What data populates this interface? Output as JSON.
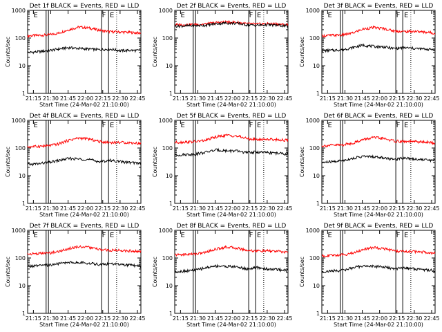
{
  "figure": {
    "background": "#ffffff",
    "foreground": "#000000"
  },
  "chart_data": [
    {
      "type": "line",
      "title": "Det 1f BLACK = Events, RED = LLD",
      "xlabel": "Start Time (24-Mar-02 21:10:00)",
      "ylabel": "Counts/sec",
      "yscale": "log",
      "ylim": [
        1,
        1000
      ],
      "xlim": [
        "21:10",
        "22:48"
      ],
      "x_ticks": [
        "21:15",
        "21:30",
        "21:45",
        "22:00",
        "22:15",
        "22:30",
        "22:45"
      ],
      "y_ticks": [
        "1",
        "10",
        "100",
        "1000"
      ],
      "markers": [
        {
          "label": "E",
          "time": "21:17"
        },
        {
          "label": "F",
          "time": "22:16"
        },
        {
          "label": "E",
          "time": "22:23"
        }
      ],
      "solid_lines": [
        "21:26",
        "21:28",
        "22:14",
        "22:20"
      ],
      "dotted_lines": [
        "22:27"
      ],
      "series": [
        {
          "color": "#ff0000",
          "values": [
            120,
            125,
            130,
            150,
            200,
            250,
            230,
            190,
            170,
            165,
            160,
            150
          ]
        },
        {
          "color": "#000000",
          "values": [
            30,
            32,
            35,
            40,
            45,
            42,
            40,
            38,
            40,
            35,
            36,
            35
          ]
        }
      ]
    },
    {
      "type": "line",
      "title": "Det 2f BLACK = Events, RED = LLD",
      "xlabel": "Start Time (24-Mar-02 21:10:00)",
      "ylabel": "Counts/sec",
      "yscale": "log",
      "ylim": [
        1,
        1000
      ],
      "xlim": [
        "21:10",
        "22:48"
      ],
      "x_ticks": [
        "21:15",
        "21:30",
        "21:45",
        "22:00",
        "22:15",
        "22:30",
        "22:45"
      ],
      "y_ticks": [
        "1",
        "10",
        "100",
        "1000"
      ],
      "markers": [
        {
          "label": "E",
          "time": "21:17"
        },
        {
          "label": "F",
          "time": "22:16"
        },
        {
          "label": "E",
          "time": "22:23"
        }
      ],
      "solid_lines": [
        "21:26",
        "21:28",
        "22:14",
        "22:20"
      ],
      "dotted_lines": [
        "22:27"
      ],
      "series": [
        {
          "color": "#ff0000",
          "values": [
            300,
            305,
            310,
            320,
            360,
            380,
            370,
            330,
            320,
            330,
            320,
            300
          ]
        },
        {
          "color": "#000000",
          "values": [
            270,
            275,
            280,
            290,
            330,
            350,
            340,
            300,
            290,
            300,
            290,
            270
          ]
        }
      ]
    },
    {
      "type": "line",
      "title": "Det 3f BLACK = Events, RED = LLD",
      "xlabel": "Start Time (24-Mar-02 21:10:00)",
      "ylabel": "Counts/sec",
      "yscale": "log",
      "ylim": [
        1,
        1000
      ],
      "xlim": [
        "21:10",
        "22:48"
      ],
      "x_ticks": [
        "21:15",
        "21:30",
        "21:45",
        "22:00",
        "22:15",
        "22:30",
        "22:45"
      ],
      "y_ticks": [
        "1",
        "10",
        "100",
        "1000"
      ],
      "markers": [
        {
          "label": "E",
          "time": "21:17"
        },
        {
          "label": "F",
          "time": "22:16"
        },
        {
          "label": "E",
          "time": "22:23"
        }
      ],
      "solid_lines": [
        "21:26",
        "21:28",
        "22:14",
        "22:20"
      ],
      "dotted_lines": [
        "22:27"
      ],
      "series": [
        {
          "color": "#ff0000",
          "values": [
            120,
            125,
            130,
            150,
            210,
            240,
            220,
            180,
            170,
            175,
            165,
            150
          ]
        },
        {
          "color": "#000000",
          "values": [
            35,
            36,
            38,
            45,
            55,
            50,
            48,
            42,
            45,
            42,
            40,
            38
          ]
        }
      ]
    },
    {
      "type": "line",
      "title": "Det 4f BLACK = Events, RED = LLD",
      "xlabel": "Start Time (24-Mar-02 21:10:00)",
      "ylabel": "Counts/sec",
      "yscale": "log",
      "ylim": [
        1,
        1000
      ],
      "xlim": [
        "21:10",
        "22:48"
      ],
      "x_ticks": [
        "21:15",
        "21:30",
        "21:45",
        "22:00",
        "22:15",
        "22:30",
        "22:45"
      ],
      "y_ticks": [
        "1",
        "10",
        "100",
        "1000"
      ],
      "markers": [
        {
          "label": "E",
          "time": "21:17"
        },
        {
          "label": "F",
          "time": "22:16"
        },
        {
          "label": "E",
          "time": "22:23"
        }
      ],
      "solid_lines": [
        "21:26",
        "21:28",
        "22:14",
        "22:20"
      ],
      "dotted_lines": [
        "22:27"
      ],
      "series": [
        {
          "color": "#ff0000",
          "values": [
            110,
            115,
            120,
            140,
            190,
            230,
            210,
            170,
            160,
            160,
            155,
            145
          ]
        },
        {
          "color": "#000000",
          "values": [
            25,
            27,
            30,
            35,
            42,
            40,
            38,
            32,
            36,
            32,
            30,
            28
          ]
        }
      ]
    },
    {
      "type": "line",
      "title": "Det 5f BLACK = Events, RED = LLD",
      "xlabel": "Start Time (24-Mar-02 21:10:00)",
      "ylabel": "Counts/sec",
      "yscale": "log",
      "ylim": [
        1,
        1000
      ],
      "xlim": [
        "21:10",
        "22:48"
      ],
      "x_ticks": [
        "21:15",
        "21:30",
        "21:45",
        "22:00",
        "22:15",
        "22:30",
        "22:45"
      ],
      "y_ticks": [
        "1",
        "10",
        "100",
        "1000"
      ],
      "markers": [
        {
          "label": "E",
          "time": "21:17"
        },
        {
          "label": "F",
          "time": "22:16"
        },
        {
          "label": "E",
          "time": "22:23"
        }
      ],
      "solid_lines": [
        "21:26",
        "21:28",
        "22:14",
        "22:20"
      ],
      "dotted_lines": [
        "22:27"
      ],
      "series": [
        {
          "color": "#ff0000",
          "values": [
            160,
            165,
            170,
            190,
            250,
            290,
            270,
            220,
            200,
            210,
            200,
            190
          ]
        },
        {
          "color": "#000000",
          "values": [
            55,
            58,
            60,
            70,
            85,
            80,
            78,
            68,
            72,
            68,
            65,
            60
          ]
        }
      ]
    },
    {
      "type": "line",
      "title": "Det 6f BLACK = Events, RED = LLD",
      "xlabel": "Start Time (24-Mar-02 21:10:00)",
      "ylabel": "Counts/sec",
      "yscale": "log",
      "ylim": [
        1,
        1000
      ],
      "xlim": [
        "21:10",
        "22:48"
      ],
      "x_ticks": [
        "21:15",
        "21:30",
        "21:45",
        "22:00",
        "22:15",
        "22:30",
        "22:45"
      ],
      "y_ticks": [
        "1",
        "10",
        "100",
        "1000"
      ],
      "markers": [
        {
          "label": "E",
          "time": "21:17"
        },
        {
          "label": "F",
          "time": "22:16"
        },
        {
          "label": "E",
          "time": "22:23"
        }
      ],
      "solid_lines": [
        "21:26",
        "21:28",
        "22:14",
        "22:20"
      ],
      "dotted_lines": [
        "22:27"
      ],
      "series": [
        {
          "color": "#ff0000",
          "values": [
            120,
            125,
            130,
            150,
            200,
            240,
            220,
            180,
            170,
            170,
            165,
            150
          ]
        },
        {
          "color": "#000000",
          "values": [
            30,
            32,
            35,
            42,
            50,
            48,
            45,
            38,
            45,
            40,
            38,
            35
          ]
        }
      ]
    },
    {
      "type": "line",
      "title": "Det 7f BLACK = Events, RED = LLD",
      "xlabel": "Start Time (24-Mar-02 21:10:00)",
      "ylabel": "Counts/sec",
      "yscale": "log",
      "ylim": [
        1,
        1000
      ],
      "xlim": [
        "21:10",
        "22:48"
      ],
      "x_ticks": [
        "21:15",
        "21:30",
        "21:45",
        "22:00",
        "22:15",
        "22:30",
        "22:45"
      ],
      "y_ticks": [
        "1",
        "10",
        "100",
        "1000"
      ],
      "markers": [
        {
          "label": "E",
          "time": "21:17"
        },
        {
          "label": "F",
          "time": "22:16"
        },
        {
          "label": "E",
          "time": "22:23"
        }
      ],
      "solid_lines": [
        "21:26",
        "21:28",
        "22:14",
        "22:20"
      ],
      "dotted_lines": [
        "22:27"
      ],
      "series": [
        {
          "color": "#ff0000",
          "values": [
            140,
            145,
            150,
            170,
            220,
            260,
            240,
            200,
            190,
            190,
            180,
            170
          ]
        },
        {
          "color": "#000000",
          "values": [
            50,
            52,
            55,
            62,
            70,
            68,
            65,
            58,
            62,
            58,
            55,
            52
          ]
        }
      ]
    },
    {
      "type": "line",
      "title": "Det 8f BLACK = Events, RED = LLD",
      "xlabel": "Start Time (24-Mar-02 21:10:00)",
      "ylabel": "Counts/sec",
      "yscale": "log",
      "ylim": [
        1,
        1000
      ],
      "xlim": [
        "21:10",
        "22:48"
      ],
      "x_ticks": [
        "21:15",
        "21:30",
        "21:45",
        "22:00",
        "22:15",
        "22:30",
        "22:45"
      ],
      "y_ticks": [
        "1",
        "10",
        "100",
        "1000"
      ],
      "markers": [
        {
          "label": "E",
          "time": "21:17"
        },
        {
          "label": "F",
          "time": "22:16"
        },
        {
          "label": "E",
          "time": "22:23"
        }
      ],
      "solid_lines": [
        "21:26",
        "21:28",
        "22:14",
        "22:20"
      ],
      "dotted_lines": [
        "22:27"
      ],
      "series": [
        {
          "color": "#ff0000",
          "values": [
            130,
            135,
            140,
            160,
            210,
            250,
            230,
            190,
            180,
            180,
            175,
            160
          ]
        },
        {
          "color": "#000000",
          "values": [
            32,
            34,
            36,
            44,
            52,
            50,
            48,
            40,
            45,
            40,
            38,
            36
          ]
        }
      ]
    },
    {
      "type": "line",
      "title": "Det 9f BLACK = Events, RED = LLD",
      "xlabel": "Start Time (24-Mar-02 21:10:00)",
      "ylabel": "Counts/sec",
      "yscale": "log",
      "ylim": [
        1,
        1000
      ],
      "xlim": [
        "21:10",
        "22:48"
      ],
      "x_ticks": [
        "21:15",
        "21:30",
        "21:45",
        "22:00",
        "22:15",
        "22:30",
        "22:45"
      ],
      "y_ticks": [
        "1",
        "10",
        "100",
        "1000"
      ],
      "markers": [
        {
          "label": "E",
          "time": "21:17"
        },
        {
          "label": "F",
          "time": "22:16"
        },
        {
          "label": "E",
          "time": "22:23"
        }
      ],
      "solid_lines": [
        "21:26",
        "21:28",
        "22:14",
        "22:20"
      ],
      "dotted_lines": [
        "22:27"
      ],
      "series": [
        {
          "color": "#ff0000",
          "values": [
            120,
            125,
            130,
            150,
            200,
            240,
            220,
            180,
            170,
            170,
            165,
            150
          ]
        },
        {
          "color": "#000000",
          "values": [
            32,
            34,
            36,
            44,
            52,
            50,
            48,
            40,
            45,
            40,
            38,
            35
          ]
        }
      ]
    }
  ]
}
